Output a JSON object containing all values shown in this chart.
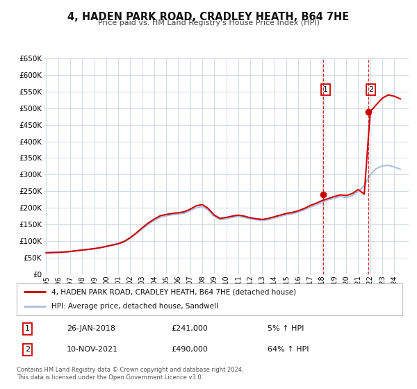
{
  "title": "4, HADEN PARK ROAD, CRADLEY HEATH, B64 7HE",
  "subtitle": "Price paid vs. HM Land Registry's House Price Index (HPI)",
  "hpi_color": "#aabfdf",
  "price_color": "#cc0000",
  "vline_color": "#cc0000",
  "background_color": "#ffffff",
  "grid_color": "#d0d8e8",
  "ylim": [
    0,
    650000
  ],
  "yticks": [
    0,
    50000,
    100000,
    150000,
    200000,
    250000,
    300000,
    350000,
    400000,
    450000,
    500000,
    550000,
    600000,
    650000
  ],
  "xlim_start": 1994.8,
  "xlim_end": 2025.2,
  "sale_dates": [
    2018.07,
    2021.86
  ],
  "sale_prices": [
    241000,
    490000
  ],
  "sale_labels": [
    "1",
    "2"
  ],
  "sale_info": [
    {
      "label": "1",
      "date": "26-JAN-2018",
      "price": "£241,000",
      "hpi": "5% ↑ HPI"
    },
    {
      "label": "2",
      "date": "10-NOV-2021",
      "price": "£490,000",
      "hpi": "64% ↑ HPI"
    }
  ],
  "legend_property_label": "4, HADEN PARK ROAD, CRADLEY HEATH, B64 7HE (detached house)",
  "legend_hpi_label": "HPI: Average price, detached house, Sandwell",
  "footer_line1": "Contains HM Land Registry data © Crown copyright and database right 2024.",
  "footer_line2": "This data is licensed under the Open Government Licence v3.0.",
  "hpi_x": [
    1995.0,
    1995.5,
    1996.0,
    1996.5,
    1997.0,
    1997.5,
    1998.0,
    1998.5,
    1999.0,
    1999.5,
    2000.0,
    2000.5,
    2001.0,
    2001.5,
    2002.0,
    2002.5,
    2003.0,
    2003.5,
    2004.0,
    2004.5,
    2005.0,
    2005.5,
    2006.0,
    2006.5,
    2007.0,
    2007.5,
    2008.0,
    2008.5,
    2009.0,
    2009.5,
    2010.0,
    2010.5,
    2011.0,
    2011.5,
    2012.0,
    2012.5,
    2013.0,
    2013.5,
    2014.0,
    2014.5,
    2015.0,
    2015.5,
    2016.0,
    2016.5,
    2017.0,
    2017.5,
    2018.0,
    2018.5,
    2019.0,
    2019.5,
    2020.0,
    2020.5,
    2021.0,
    2021.5,
    2022.0,
    2022.5,
    2023.0,
    2023.5,
    2024.0,
    2024.5
  ],
  "hpi_y": [
    63000,
    64000,
    65000,
    66000,
    68000,
    70000,
    72000,
    74000,
    77000,
    80000,
    83000,
    87000,
    91000,
    97000,
    108000,
    122000,
    136000,
    150000,
    162000,
    171000,
    176000,
    179000,
    181000,
    184000,
    191000,
    200000,
    204000,
    193000,
    174000,
    164000,
    167000,
    171000,
    174000,
    171000,
    167000,
    164000,
    162000,
    164000,
    169000,
    174000,
    179000,
    182000,
    187000,
    194000,
    202000,
    209000,
    217000,
    224000,
    229000,
    234000,
    231000,
    237000,
    249000,
    267000,
    300000,
    318000,
    326000,
    328000,
    323000,
    316000
  ],
  "price_y": [
    65000,
    65500,
    66000,
    67000,
    68500,
    71000,
    73000,
    75000,
    77000,
    80000,
    84000,
    88000,
    92000,
    99000,
    110000,
    124000,
    140000,
    154000,
    166000,
    176000,
    180000,
    183000,
    185000,
    188000,
    196000,
    206000,
    210000,
    198000,
    178000,
    168000,
    171000,
    175000,
    178000,
    175000,
    170000,
    167000,
    165000,
    168000,
    173000,
    178000,
    183000,
    186000,
    191000,
    198000,
    207000,
    214000,
    222000,
    228000,
    234000,
    239000,
    237000,
    243000,
    255000,
    241000,
    490000,
    510000,
    530000,
    540000,
    536000,
    528000
  ]
}
